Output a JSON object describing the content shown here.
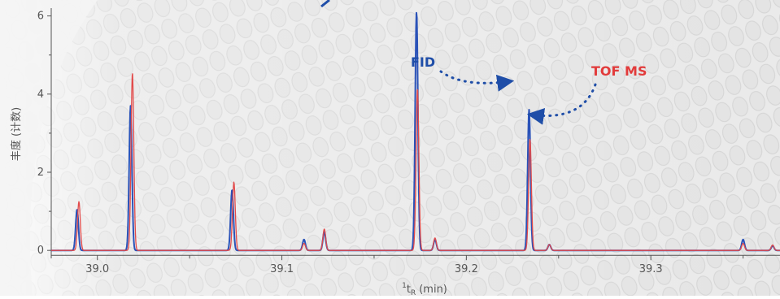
{
  "chart_data": {
    "type": "line",
    "xlabel_superscript": "1",
    "xlabel_base": "t",
    "xlabel_subscript": "R",
    "xlabel_unit": "(min)",
    "ylabel": "丰度 (计数)",
    "xlim": [
      38.975,
      39.37
    ],
    "ylim": [
      -0.1,
      6.2
    ],
    "xticks": [
      {
        "value": 39.0,
        "label": "39.0"
      },
      {
        "value": 39.1,
        "label": "39.1"
      },
      {
        "value": 39.2,
        "label": "39.2"
      },
      {
        "value": 39.3,
        "label": "39.3"
      }
    ],
    "yticks": [
      {
        "value": 0,
        "label": "0"
      },
      {
        "value": 2,
        "label": "2"
      },
      {
        "value": 4,
        "label": "4"
      },
      {
        "value": 6,
        "label": "6"
      }
    ],
    "grid": false,
    "series": [
      {
        "name": "FID",
        "color": "#2a52b8",
        "peaks": [
          {
            "x": 38.989,
            "height": 1.05
          },
          {
            "x": 39.018,
            "height": 3.7
          },
          {
            "x": 39.073,
            "height": 1.55
          },
          {
            "x": 39.112,
            "height": 0.28
          },
          {
            "x": 39.123,
            "height": 0.48
          },
          {
            "x": 39.173,
            "height": 6.1
          },
          {
            "x": 39.183,
            "height": 0.28
          },
          {
            "x": 39.234,
            "height": 3.6
          },
          {
            "x": 39.245,
            "height": 0.15
          },
          {
            "x": 39.35,
            "height": 0.28
          },
          {
            "x": 39.366,
            "height": 0.12
          }
        ]
      },
      {
        "name": "TOF MS",
        "color": "#e24a4a",
        "peaks": [
          {
            "x": 38.99,
            "height": 1.25
          },
          {
            "x": 39.019,
            "height": 4.55
          },
          {
            "x": 39.074,
            "height": 1.75
          },
          {
            "x": 39.112,
            "height": 0.18
          },
          {
            "x": 39.123,
            "height": 0.55
          },
          {
            "x": 39.1735,
            "height": 4.15
          },
          {
            "x": 39.183,
            "height": 0.32
          },
          {
            "x": 39.2345,
            "height": 2.85
          },
          {
            "x": 39.245,
            "height": 0.15
          },
          {
            "x": 39.35,
            "height": 0.18
          },
          {
            "x": 39.366,
            "height": 0.14
          }
        ]
      }
    ],
    "annotations": [
      {
        "text": "FID",
        "color": "#1f4ea8"
      },
      {
        "text": "TOF MS",
        "color": "#e23b3b"
      }
    ]
  }
}
